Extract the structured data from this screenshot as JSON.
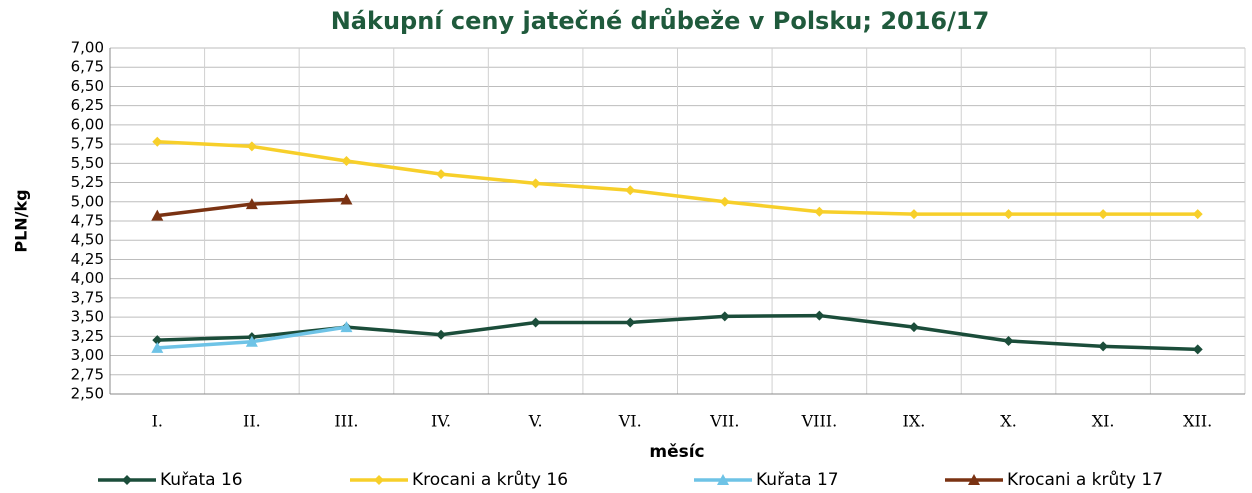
{
  "chart_data": {
    "type": "line",
    "title": "Nákupní ceny jatečné drůbeže v Polsku; 2016/17",
    "y_label": "PLN/kg",
    "x_label": "měsíc",
    "categories": [
      "I.",
      "II.",
      "III.",
      "IV.",
      "V.",
      "VI.",
      "VII.",
      "VIII.",
      "IX.",
      "X.",
      "XI.",
      "XII."
    ],
    "series": [
      {
        "name": "Kuřata 16",
        "color": "#1b4d3a",
        "marker": "diamond",
        "values": [
          3.2,
          3.24,
          3.37,
          3.27,
          3.43,
          3.43,
          3.51,
          3.52,
          3.37,
          3.19,
          3.12,
          3.08
        ]
      },
      {
        "name": "Krocani a krůty 16",
        "color": "#f7cf2a",
        "marker": "diamond",
        "values": [
          5.78,
          5.72,
          5.53,
          5.36,
          5.24,
          5.15,
          5.0,
          4.87,
          4.84,
          4.84,
          4.84,
          4.84
        ]
      },
      {
        "name": "Kuřata 17",
        "color": "#6ec3e6",
        "marker": "triangle",
        "values": [
          3.1,
          3.18,
          3.37,
          null,
          null,
          null,
          null,
          null,
          null,
          null,
          null,
          null
        ]
      },
      {
        "name": "Krocani a krůty 17",
        "color": "#7a3212",
        "marker": "triangle",
        "values": [
          4.82,
          4.97,
          5.03,
          null,
          null,
          null,
          null,
          null,
          null,
          null,
          null,
          null
        ]
      }
    ],
    "ylim": [
      2.5,
      7.0
    ],
    "yticks": [
      {
        "value": 2.5,
        "label": "2,50"
      },
      {
        "value": 2.75,
        "label": "2,75"
      },
      {
        "value": 3.0,
        "label": "3,00"
      },
      {
        "value": 3.25,
        "label": "3,25"
      },
      {
        "value": 3.5,
        "label": "3,50"
      },
      {
        "value": 3.75,
        "label": "3,75"
      },
      {
        "value": 4.0,
        "label": "4,00"
      },
      {
        "value": 4.25,
        "label": "4,25"
      },
      {
        "value": 4.5,
        "label": "4,50"
      },
      {
        "value": 4.75,
        "label": "4,75"
      },
      {
        "value": 5.0,
        "label": "5,00"
      },
      {
        "value": 5.25,
        "label": "5,25"
      },
      {
        "value": 5.5,
        "label": "5,50"
      },
      {
        "value": 5.75,
        "label": "5,75"
      },
      {
        "value": 6.0,
        "label": "6,00"
      },
      {
        "value": 6.25,
        "label": "6,25"
      },
      {
        "value": 6.5,
        "label": "6,50"
      },
      {
        "value": 6.75,
        "label": "6,75"
      },
      {
        "value": 7.0,
        "label": "7,00"
      }
    ],
    "grid": true,
    "legend": "bottom"
  }
}
